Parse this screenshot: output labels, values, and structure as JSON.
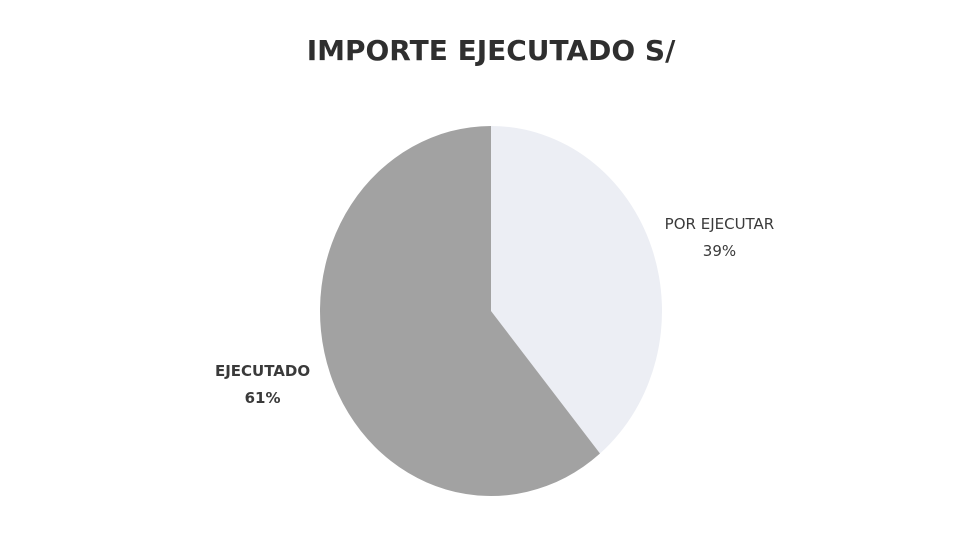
{
  "chart_data": {
    "type": "pie",
    "title": "IMPORTE EJECUTADO S/",
    "categories": [
      "POR EJECUTAR",
      "EJECUTADO"
    ],
    "values": [
      39,
      61
    ],
    "value_labels": [
      "39%",
      "61%"
    ],
    "colors": [
      "#eceef4",
      "#a2a2a2"
    ]
  }
}
